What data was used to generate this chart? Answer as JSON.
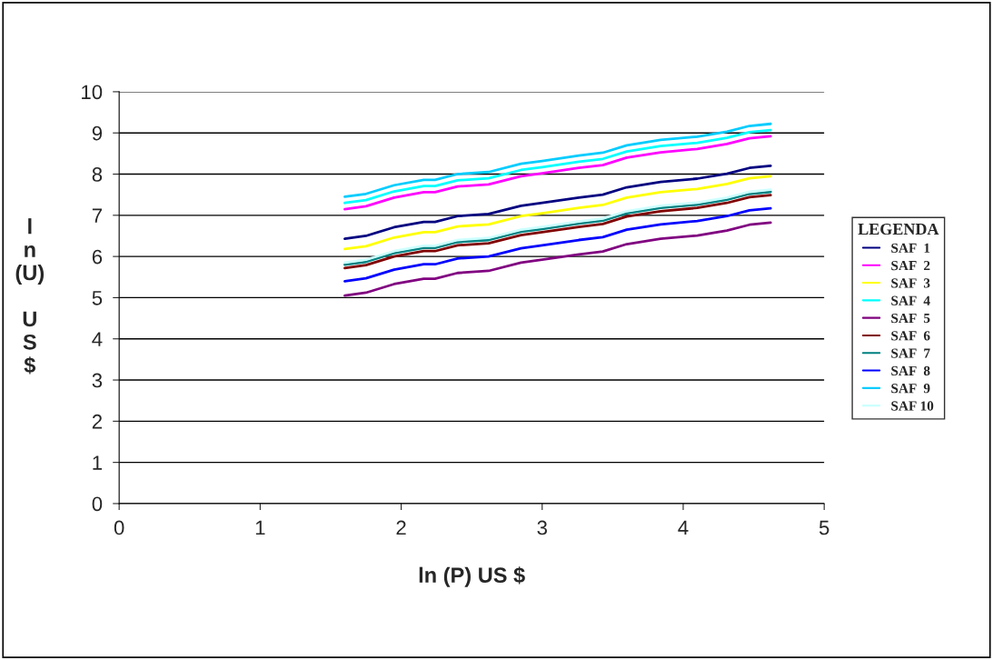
{
  "chart_data": {
    "type": "line",
    "xlabel": "ln (P) US $",
    "ylabel": "l\nn\n(U)\n\nU\nS\n$",
    "legend_title": "LEGENDA",
    "x": [
      1.6,
      1.75,
      1.95,
      2.16,
      2.24,
      2.4,
      2.62,
      2.85,
      3.0,
      3.26,
      3.43,
      3.6,
      3.84,
      4.1,
      4.31,
      4.47,
      4.62
    ],
    "series": [
      {
        "name": "SAF  1",
        "color": "#000080",
        "values": [
          6.43,
          6.5,
          6.71,
          6.84,
          6.84,
          6.98,
          7.03,
          7.23,
          7.3,
          7.43,
          7.5,
          7.68,
          7.81,
          7.89,
          8.01,
          8.15,
          8.2
        ]
      },
      {
        "name": "SAF  2",
        "color": "#ff00ff",
        "values": [
          7.15,
          7.22,
          7.43,
          7.56,
          7.56,
          7.7,
          7.75,
          7.95,
          8.02,
          8.15,
          8.22,
          8.4,
          8.53,
          8.61,
          8.73,
          8.87,
          8.92
        ]
      },
      {
        "name": "SAF  3",
        "color": "#ffff00",
        "values": [
          6.18,
          6.25,
          6.46,
          6.59,
          6.59,
          6.73,
          6.78,
          6.98,
          7.05,
          7.18,
          7.25,
          7.43,
          7.56,
          7.64,
          7.76,
          7.9,
          7.95
        ]
      },
      {
        "name": "SAF  4",
        "color": "#00ffff",
        "values": [
          7.3,
          7.37,
          7.58,
          7.71,
          7.71,
          7.85,
          7.9,
          8.1,
          8.17,
          8.3,
          8.37,
          8.55,
          8.68,
          8.76,
          8.88,
          9.02,
          9.07
        ]
      },
      {
        "name": "SAF  5",
        "color": "#800080",
        "values": [
          5.05,
          5.12,
          5.33,
          5.46,
          5.46,
          5.6,
          5.65,
          5.85,
          5.92,
          6.05,
          6.12,
          6.3,
          6.43,
          6.51,
          6.63,
          6.77,
          6.82
        ]
      },
      {
        "name": "SAF  6",
        "color": "#800000",
        "values": [
          5.72,
          5.79,
          6.0,
          6.13,
          6.13,
          6.27,
          6.32,
          6.52,
          6.59,
          6.72,
          6.79,
          6.97,
          7.1,
          7.18,
          7.3,
          7.44,
          7.49
        ]
      },
      {
        "name": "SAF  7",
        "color": "#008080",
        "values": [
          5.8,
          5.87,
          6.08,
          6.21,
          6.21,
          6.35,
          6.4,
          6.6,
          6.67,
          6.8,
          6.87,
          7.05,
          7.18,
          7.26,
          7.38,
          7.52,
          7.57
        ]
      },
      {
        "name": "SAF  8",
        "color": "#0000ff",
        "values": [
          5.4,
          5.47,
          5.68,
          5.81,
          5.81,
          5.95,
          6.0,
          6.2,
          6.27,
          6.4,
          6.47,
          6.65,
          6.78,
          6.86,
          6.98,
          7.12,
          7.17
        ]
      },
      {
        "name": "SAF  9",
        "color": "#00ccff",
        "values": [
          7.45,
          7.52,
          7.73,
          7.86,
          7.86,
          8.0,
          8.05,
          8.25,
          8.32,
          8.45,
          8.52,
          8.7,
          8.83,
          8.91,
          9.03,
          9.17,
          9.22
        ]
      },
      {
        "name": "SAF 10",
        "color": "#ccffff",
        "values": [
          5.85,
          5.92,
          6.13,
          6.26,
          6.26,
          6.4,
          6.45,
          6.65,
          6.72,
          6.85,
          6.92,
          7.1,
          7.23,
          7.31,
          7.43,
          7.57,
          7.62
        ]
      }
    ],
    "xlim": [
      0,
      5
    ],
    "xticks": [
      0,
      1,
      2,
      3,
      4,
      5
    ],
    "ylim": [
      0,
      10
    ],
    "yticks": [
      0,
      1,
      2,
      3,
      4,
      5,
      6,
      7,
      8,
      9,
      10
    ],
    "grid": "y",
    "legend": "right",
    "marker": "none",
    "line_style": "solid"
  }
}
